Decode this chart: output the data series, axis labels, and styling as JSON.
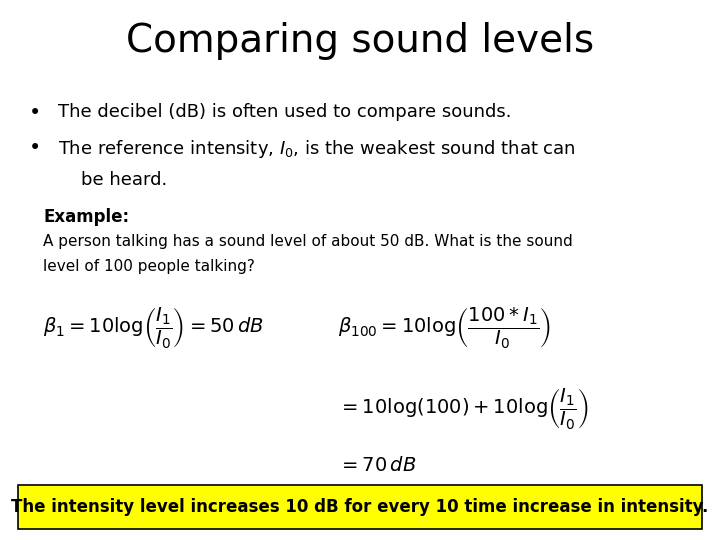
{
  "title": "Comparing sound levels",
  "title_fontsize": 28,
  "bg_color": "#ffffff",
  "bullet1": "The decibel (dB) is often used to compare sounds.",
  "example_label": "Example:",
  "example_line1": "A person talking has a sound level of about 50 dB. What is the sound",
  "example_line2": "level of 100 people talking?",
  "highlight_text": "The intensity level increases 10 dB for every 10 time increase in intensity.",
  "highlight_bg": "#ffff00",
  "highlight_fontsize": 12,
  "text_fontsize": 13,
  "small_fontsize": 11,
  "formula_fontsize": 14
}
